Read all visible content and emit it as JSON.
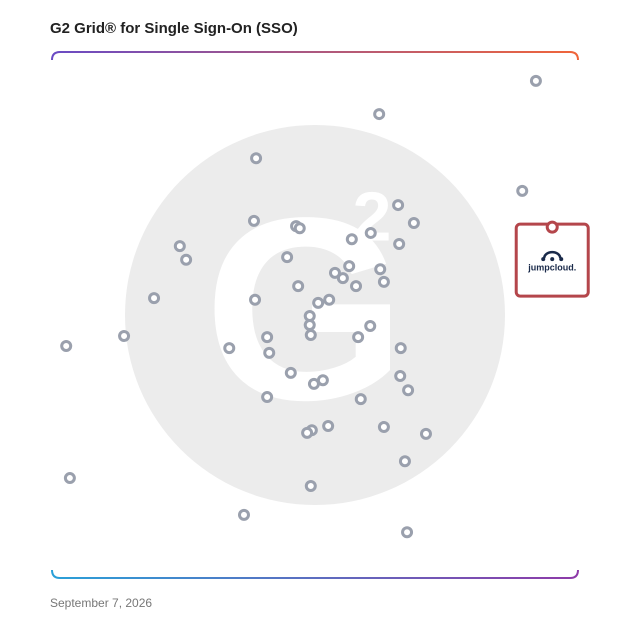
{
  "chart_data": {
    "type": "scatter",
    "title": "G2 Grid® for Single Sign-On (SSO)",
    "date": "September 7, 2026",
    "xlim": [
      0,
      100
    ],
    "ylim": [
      0,
      100
    ],
    "series": [
      {
        "color": "#9aa0ad",
        "x": [
          92.0,
          62.2,
          38.8,
          89.4,
          65.8,
          68.8,
          38.4,
          46.4,
          47.1,
          60.6,
          57.0,
          66.0,
          24.3,
          25.5,
          44.7,
          56.5,
          62.4,
          53.8,
          55.3,
          57.8,
          63.1,
          46.8,
          19.4,
          38.6,
          52.7,
          50.6,
          49.0,
          49.0,
          60.5,
          49.2,
          58.2,
          40.9,
          13.7,
          2.7,
          33.7,
          41.3,
          66.3,
          45.4,
          66.2,
          51.5,
          49.8,
          67.7,
          40.9,
          58.7,
          49.4,
          48.5,
          52.5,
          63.1,
          71.1,
          67.1,
          3.4,
          49.2,
          36.5,
          67.5
        ],
        "y": [
          94.5,
          88.2,
          79.8,
          73.6,
          70.9,
          67.5,
          67.9,
          66.9,
          66.5,
          65.6,
          64.4,
          63.5,
          63.1,
          60.5,
          61.0,
          59.3,
          58.7,
          58.0,
          57.0,
          55.5,
          56.3,
          55.5,
          53.2,
          52.9,
          52.9,
          52.3,
          49.8,
          48.1,
          47.9,
          46.2,
          45.8,
          45.8,
          46.0,
          44.1,
          43.7,
          42.8,
          43.7,
          39.0,
          38.4,
          37.6,
          36.9,
          35.7,
          34.4,
          34.0,
          28.1,
          27.6,
          28.9,
          28.7,
          27.4,
          22.2,
          19.0,
          17.5,
          12.0,
          8.7
        ]
      },
      {
        "name": "jumpcloud.",
        "color": "#b4464b",
        "x": [
          95.1
        ],
        "y": [
          66.7
        ]
      }
    ]
  }
}
